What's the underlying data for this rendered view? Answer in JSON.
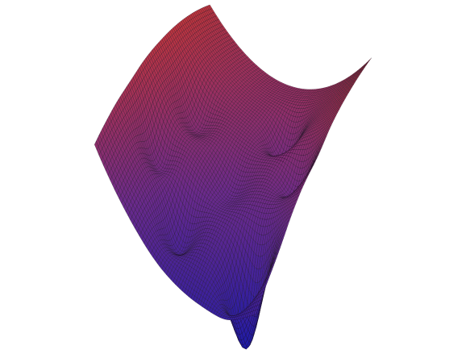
{
  "chart_data": {
    "type": "surface",
    "title": "",
    "xlabel": "",
    "ylabel": "",
    "zlabel": "",
    "axes_visible": false,
    "grid": false,
    "legend": "none",
    "mesh": {
      "edge_color": "#1a1020",
      "resolution": 72
    },
    "colormap": {
      "low": "#1a1aa8",
      "mid": "#6a2a8c",
      "high": "#c0343c"
    },
    "x_range": [
      -1.5,
      1.5
    ],
    "y_range": [
      -1.5,
      1.5
    ],
    "z_range": [
      -2.4,
      3.3
    ],
    "surface": {
      "description_free_form": "",
      "base_curvature": 1.2,
      "wells": [
        {
          "x": 0.95,
          "y": -0.95,
          "depth": 2.4,
          "width": 0.22
        },
        {
          "x": -0.35,
          "y": -0.9,
          "depth": 1.05,
          "width": 0.22
        },
        {
          "x": -1.0,
          "y": -0.55,
          "depth": 0.85,
          "width": 0.2
        },
        {
          "x": -0.85,
          "y": 0.2,
          "depth": 0.7,
          "width": 0.22
        },
        {
          "x": 0.45,
          "y": 0.7,
          "depth": 0.9,
          "width": 0.2
        },
        {
          "x": 1.1,
          "y": 0.1,
          "depth": 0.8,
          "width": 0.2
        },
        {
          "x": 0.1,
          "y": -0.2,
          "depth": 0.45,
          "width": 0.22
        }
      ]
    }
  }
}
